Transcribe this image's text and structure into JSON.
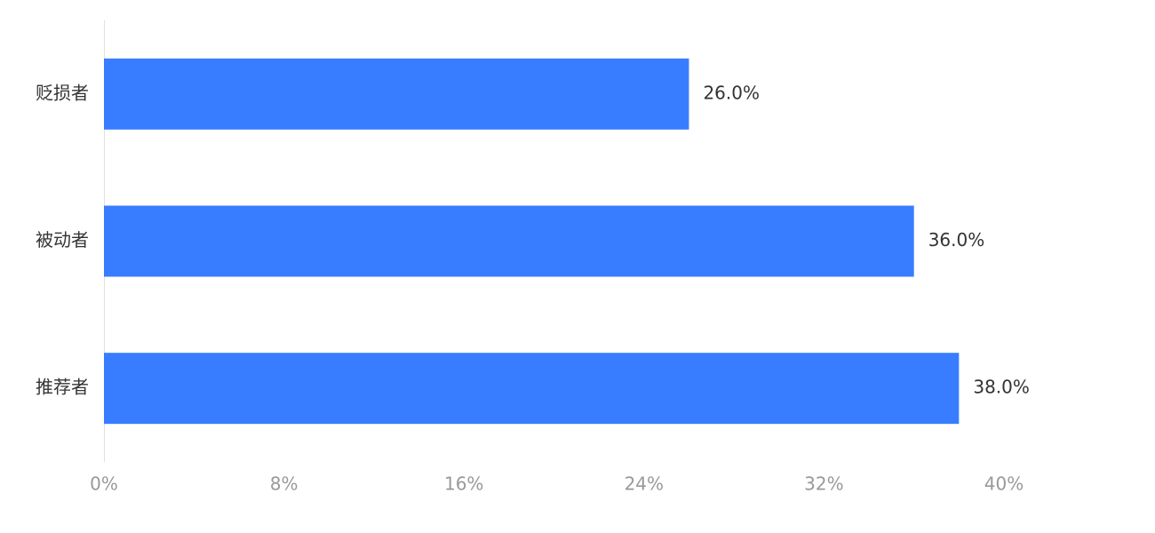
{
  "chart_data": {
    "type": "bar",
    "orientation": "horizontal",
    "categories": [
      "贬损者",
      "被动者",
      "推荐者"
    ],
    "values": [
      26.0,
      36.0,
      38.0
    ],
    "value_labels": [
      "26.0%",
      "36.0%",
      "38.0%"
    ],
    "color": "#387dff",
    "xlim": [
      0,
      40
    ],
    "xticks": [
      {
        "value": 0,
        "label": "0%"
      },
      {
        "value": 8,
        "label": "8%"
      },
      {
        "value": 16,
        "label": "16%"
      },
      {
        "value": 24,
        "label": "24%"
      },
      {
        "value": 32,
        "label": "32%"
      },
      {
        "value": 40,
        "label": "40%"
      }
    ],
    "grid": false
  }
}
